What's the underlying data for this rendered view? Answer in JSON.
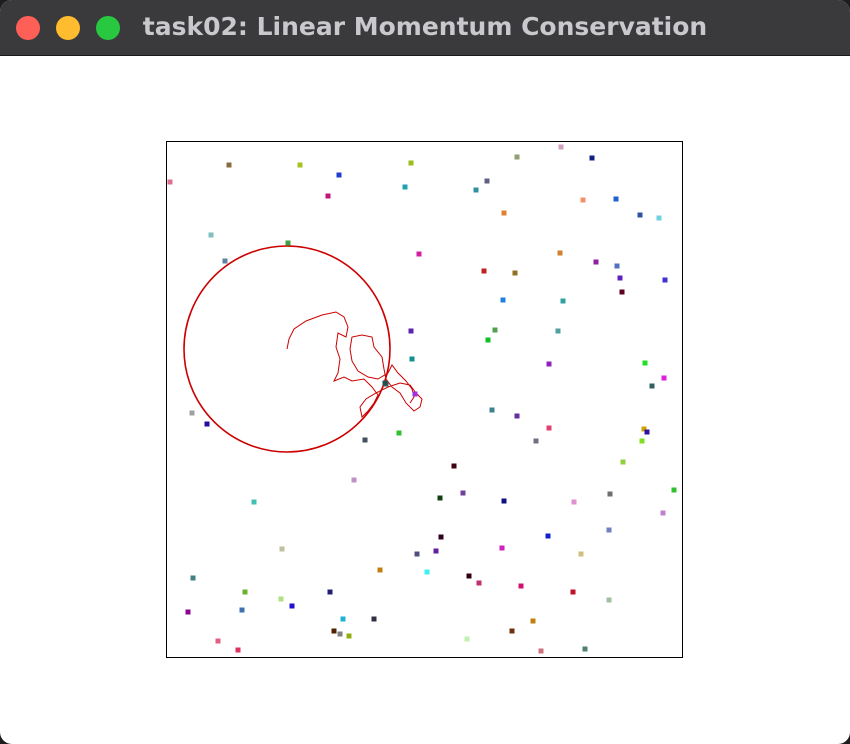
{
  "window": {
    "title": "task02: Linear Momentum Conservation"
  },
  "colors": {
    "titlebar": "#3a3a3c",
    "title_text": "#c9c9cd",
    "close": "#fe5f57",
    "minimize": "#febc2e",
    "maximize": "#28c840",
    "trail": "#cc0000",
    "frame": "#000000"
  },
  "icons": {
    "close": "close-dot-icon",
    "minimize": "minimize-dot-icon",
    "maximize": "maximize-dot-icon"
  }
}
